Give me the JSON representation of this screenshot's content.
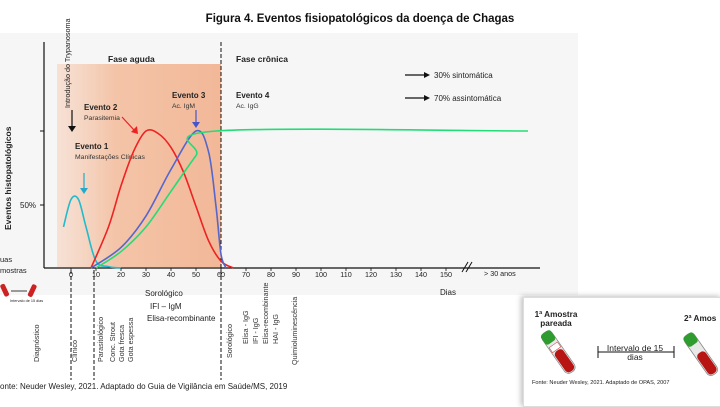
{
  "figure": {
    "title": "Figura 4. Eventos fisiopatológicos da doença de Chagas"
  },
  "chart": {
    "y_axis_label": "Eventos histopatológicos",
    "y_tick_50": "50%",
    "phase_acute": "Fase aguda",
    "phase_chronic": "Fase crônica",
    "introduction_label": "Introdução do Trypanosoma",
    "events": [
      {
        "title": "Evento 1",
        "desc": "Manifestações Clínicas"
      },
      {
        "title": "Evento 2",
        "desc": "Parasitemia"
      },
      {
        "title": "Evento 3",
        "desc": "Ac. IgM"
      },
      {
        "title": "Evento 4",
        "desc": "Ac. IgG"
      }
    ],
    "outcome_1": "30% sintomática",
    "outcome_2": "70% assintomática",
    "x_ticks": [
      "0",
      "10",
      "20",
      "30",
      "40",
      "50",
      "60",
      "70",
      "80",
      "90",
      "100",
      "110",
      "120",
      "130",
      "140",
      "150"
    ],
    "x_tick_last": "> 30 anos",
    "x_axis_label": "Dias",
    "left_cut_label": [
      "uas",
      "mostras"
    ],
    "sorologico_block": [
      "Sorológico",
      "IFI – IgM",
      "Elisa-recombinante"
    ],
    "colors": {
      "acute_band": "#f4c7ae",
      "red_curve": "#ee2222",
      "blue_curve": "#5566cc",
      "green_curve": "#22dd77",
      "cyan_curve": "#22bbcc"
    }
  },
  "chart_data": {
    "type": "line",
    "xlabel": "Dias",
    "ylabel": "Eventos histopatológicos",
    "xlim": [
      0,
      150
    ],
    "series": [
      {
        "name": "Evento 1 — Manifestações Clínicas",
        "x": [
          -3,
          0,
          3,
          6,
          10,
          15,
          20
        ],
        "y": [
          30,
          50,
          50,
          30,
          5,
          1,
          0
        ]
      },
      {
        "name": "Evento 2 — Parasitemia",
        "x": [
          8,
          15,
          20,
          25,
          30,
          35,
          40,
          45,
          50,
          55,
          60,
          65
        ],
        "y": [
          0,
          30,
          60,
          85,
          100,
          98,
          88,
          70,
          45,
          20,
          5,
          0
        ]
      },
      {
        "name": "Evento 3 — Ac. IgM",
        "x": [
          8,
          20,
          30,
          40,
          50,
          55,
          58,
          60,
          62
        ],
        "y": [
          0,
          15,
          38,
          72,
          100,
          85,
          45,
          10,
          0
        ]
      },
      {
        "name": "Evento 4 — Ac. IgG",
        "x": [
          10,
          20,
          30,
          40,
          50,
          58,
          150
        ],
        "y": [
          0,
          12,
          30,
          56,
          82,
          100,
          100
        ]
      }
    ]
  },
  "diagnostics": {
    "left": [
      "Diagnóstico",
      "Clínico",
      "Parasitológico",
      "Conc. Strout",
      "Gota fresca",
      "Gota espessa"
    ],
    "right": [
      "Sorológico",
      "Elisa - IgG",
      "IFI - IgG",
      "Elisa-recombinante",
      "HAI - IgG",
      "Quimioluminescência"
    ]
  },
  "source_left": "onte: Neuder Wesley, 2021. Adaptado do Guia de Vigilância em Saúde/MS, 2019",
  "inset": {
    "sample_1": "1ª Amostra pareada",
    "sample_2": "2ª Amos",
    "interval": "Intervalo de 15 dias",
    "source": "Fonte: Neuder Wesley, 2021. Adaptado de OPAS, 2007"
  },
  "small_inset_label": "Intervalo de 15 dias"
}
